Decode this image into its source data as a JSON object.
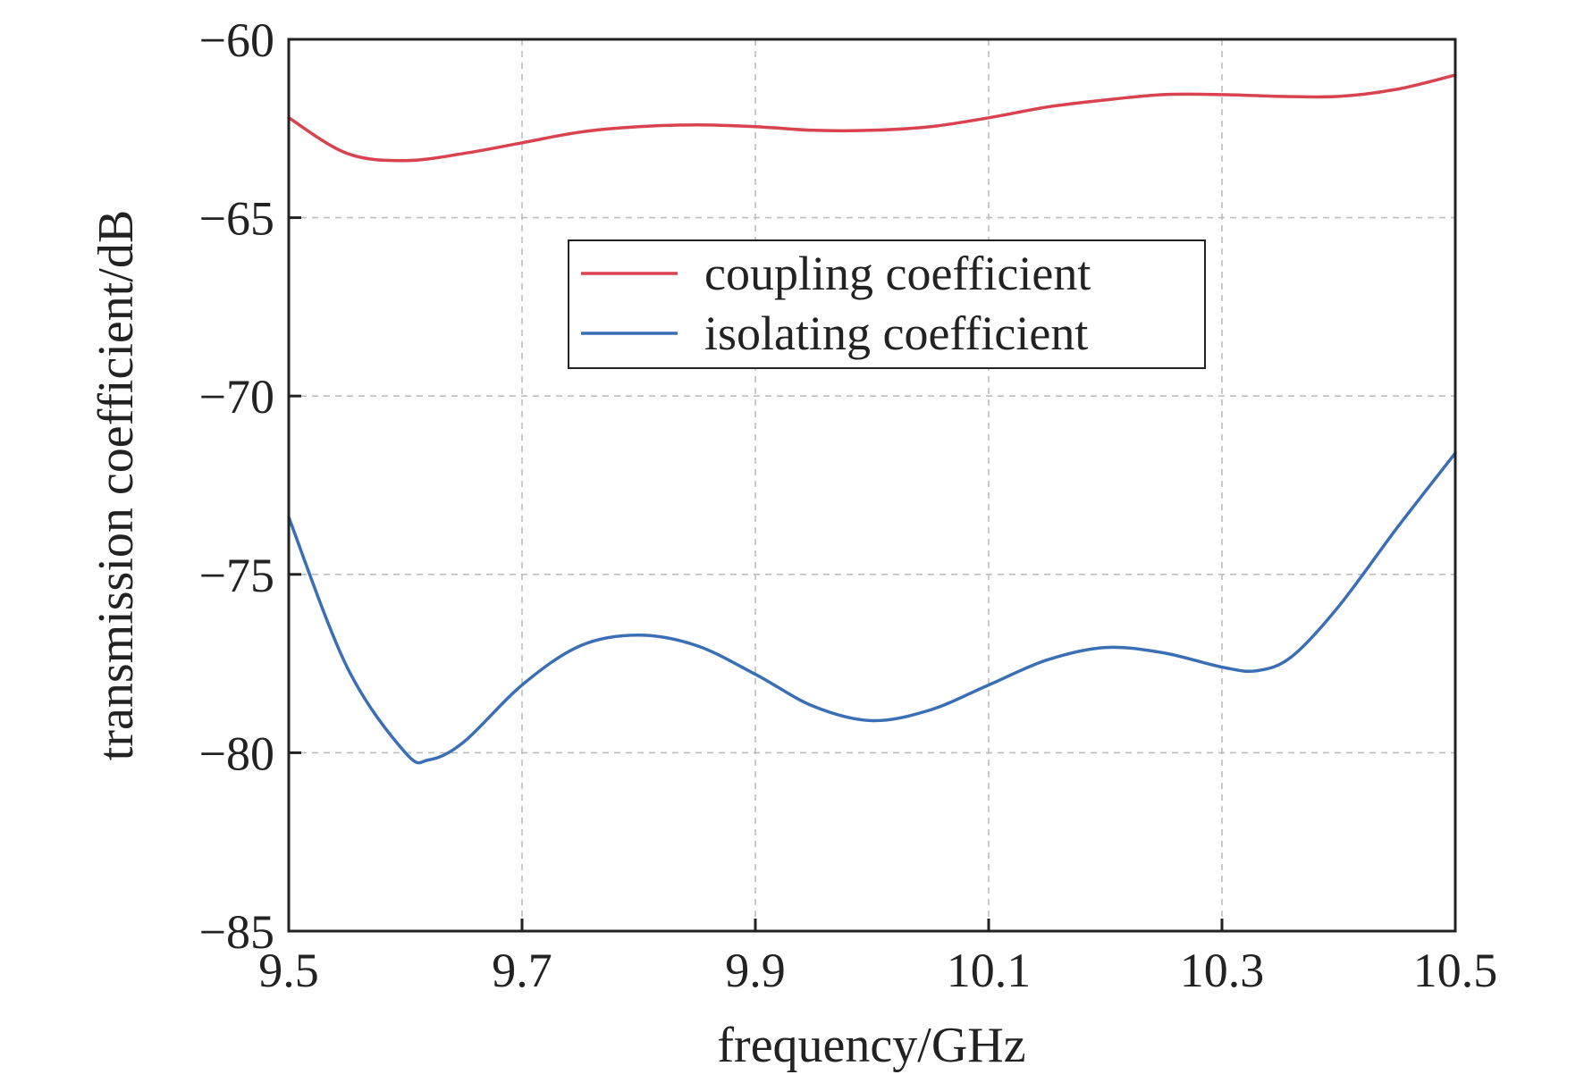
{
  "chart_data": {
    "type": "line",
    "title": "",
    "xlabel": "frequency/GHz",
    "ylabel": "transmission coefficient/dB",
    "xlim": [
      9.5,
      10.5
    ],
    "ylim": [
      -85,
      -60
    ],
    "xticks": [
      9.5,
      9.7,
      9.9,
      10.1,
      10.3,
      10.5
    ],
    "xtick_labels": [
      "9.5",
      "9.7",
      "9.9",
      "10.1",
      "10.3",
      "10.5"
    ],
    "yticks": [
      -60,
      -65,
      -70,
      -75,
      -80,
      -85
    ],
    "ytick_labels": [
      "−60",
      "−65",
      "−70",
      "−75",
      "−80",
      "−85"
    ],
    "grid": true,
    "legend_position": "upper-center",
    "series": [
      {
        "name": "coupling coefficient",
        "color": "#d9434f",
        "x": [
          9.5,
          9.55,
          9.6,
          9.65,
          9.7,
          9.75,
          9.8,
          9.85,
          9.9,
          9.95,
          10.0,
          10.05,
          10.1,
          10.15,
          10.2,
          10.25,
          10.3,
          10.35,
          10.4,
          10.45,
          10.5
        ],
        "y": [
          -62.2,
          -63.2,
          -63.4,
          -63.2,
          -62.9,
          -62.6,
          -62.45,
          -62.4,
          -62.45,
          -62.55,
          -62.55,
          -62.45,
          -62.2,
          -61.9,
          -61.7,
          -61.55,
          -61.55,
          -61.6,
          -61.6,
          -61.4,
          -61.0
        ]
      },
      {
        "name": "isolating coefficient",
        "color": "#3a6fb5",
        "x": [
          9.5,
          9.55,
          9.6,
          9.62,
          9.65,
          9.7,
          9.75,
          9.8,
          9.85,
          9.9,
          9.95,
          10.0,
          10.05,
          10.1,
          10.15,
          10.2,
          10.25,
          10.3,
          10.33,
          10.36,
          10.4,
          10.45,
          10.5
        ],
        "y": [
          -73.4,
          -77.6,
          -80.0,
          -80.2,
          -79.7,
          -78.1,
          -77.0,
          -76.7,
          -77.0,
          -77.8,
          -78.7,
          -79.1,
          -78.8,
          -78.1,
          -77.4,
          -77.05,
          -77.2,
          -77.6,
          -77.7,
          -77.3,
          -75.9,
          -73.7,
          -71.6
        ]
      }
    ]
  }
}
